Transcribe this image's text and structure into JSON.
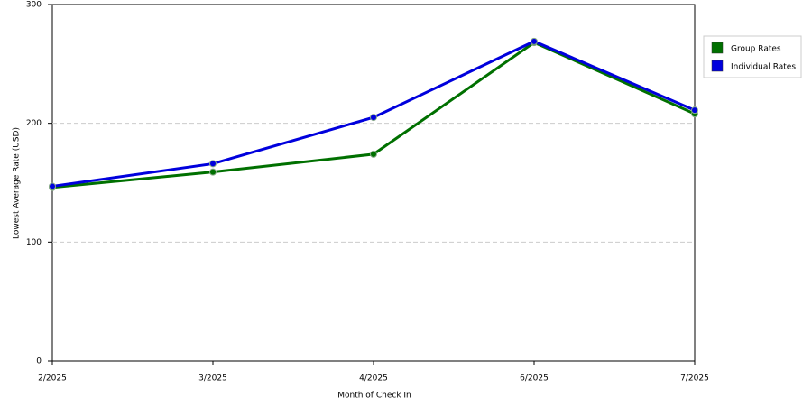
{
  "chart_data": {
    "type": "line",
    "x_label": "Month of Check In",
    "y_label": "Lowest Average Rate (USD)",
    "categories": [
      "2/2025",
      "3/2025",
      "4/2025",
      "6/2025",
      "7/2025"
    ],
    "series": [
      {
        "name": "Group Rates",
        "color": "#007000",
        "values": [
          146,
          159,
          174,
          268,
          208
        ]
      },
      {
        "name": "Individual Rates",
        "color": "#0000dd",
        "values": [
          147,
          166,
          205,
          269,
          211
        ]
      }
    ],
    "ylim": [
      0,
      300
    ],
    "yticks": [
      0,
      100,
      200,
      300
    ],
    "grid": true
  }
}
